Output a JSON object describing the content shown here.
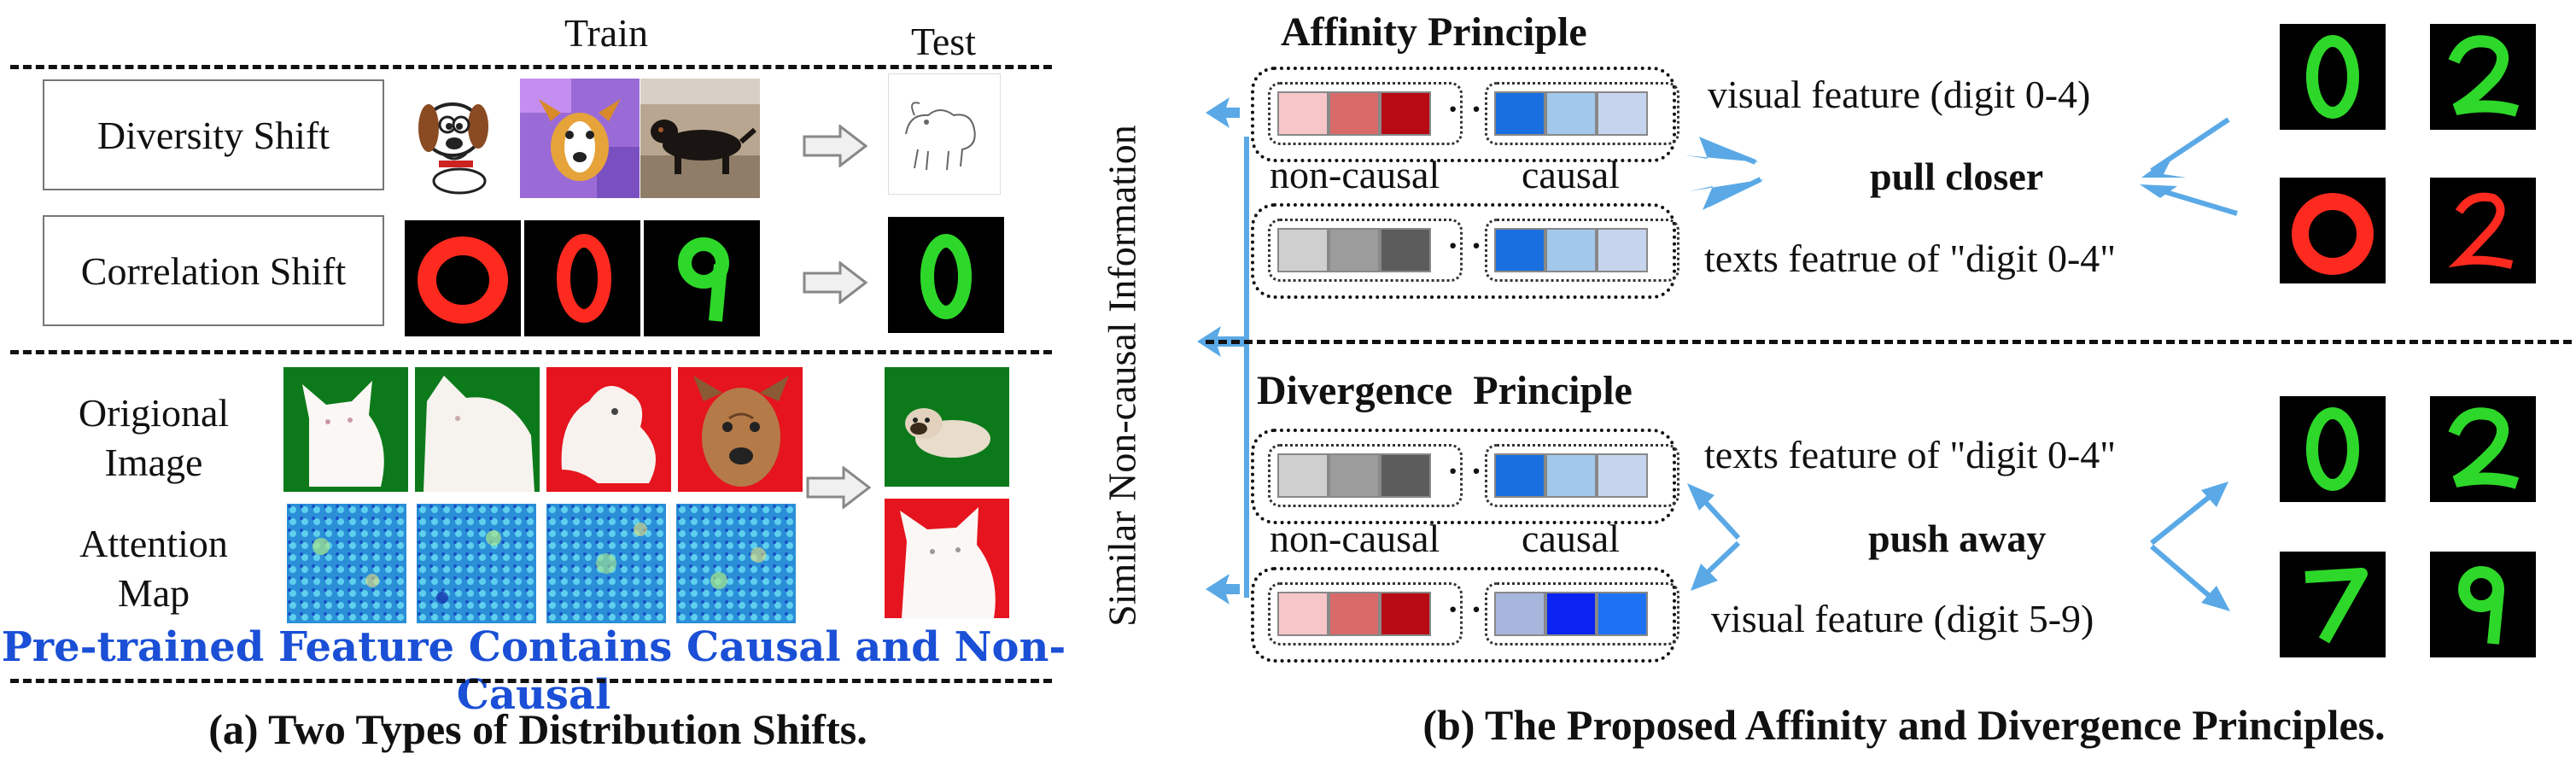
{
  "left": {
    "header_train": "Train",
    "header_test": "Test",
    "rows": {
      "diversity_label": "Diversity Shift",
      "correlation_label": "Correlation Shift",
      "original_label": "Origional\nImage",
      "attention_label": "Attention\nMap"
    },
    "banner": "Pre-trained Feature Contains Causal and Non-Causal",
    "caption": "(a) Two Types of  Distribution Shifts."
  },
  "right": {
    "vertical_axis": "Similar Non-causal Information",
    "affinity_title": "Affinity Principle",
    "divergence_title": "Divergence  Principle",
    "non_causal_top": "non-causal",
    "causal_top": "causal",
    "non_causal_bottom": "non-causal",
    "causal_bottom": "causal",
    "ellipsis": "· · ·",
    "aff_visual": "visual feature (digit 0-4)",
    "aff_text": "texts featrue of \"digit 0-4\"",
    "pull": "pull closer",
    "div_text": "texts feature of \"digit 0-4\"",
    "div_visual": "visual feature (digit 5-9)",
    "push": "push away",
    "caption": "(b) The Proposed Affinity and Divergence Principles.",
    "digits_top": [
      "0",
      "2",
      "0",
      "2"
    ],
    "digits_bottom": [
      "0",
      "2",
      "7",
      "9"
    ]
  },
  "colors": {
    "arrow_blue": "#5aa9e6",
    "banner_blue": "#1a4fd6",
    "red_1": "#f7c6c9",
    "red_2": "#d86a6a",
    "red_3": "#b80a14",
    "blue_1": "#1a6fe0",
    "blue_2": "#a2c8eb",
    "blue_3": "#c7d4ee",
    "gray_1": "#cfcfcf",
    "gray_2": "#9c9c9c",
    "gray_3": "#5c5c5c",
    "blue_b1": "#a6b6dd",
    "blue_b2": "#0a22f2",
    "blue_b3": "#1c72f2"
  }
}
